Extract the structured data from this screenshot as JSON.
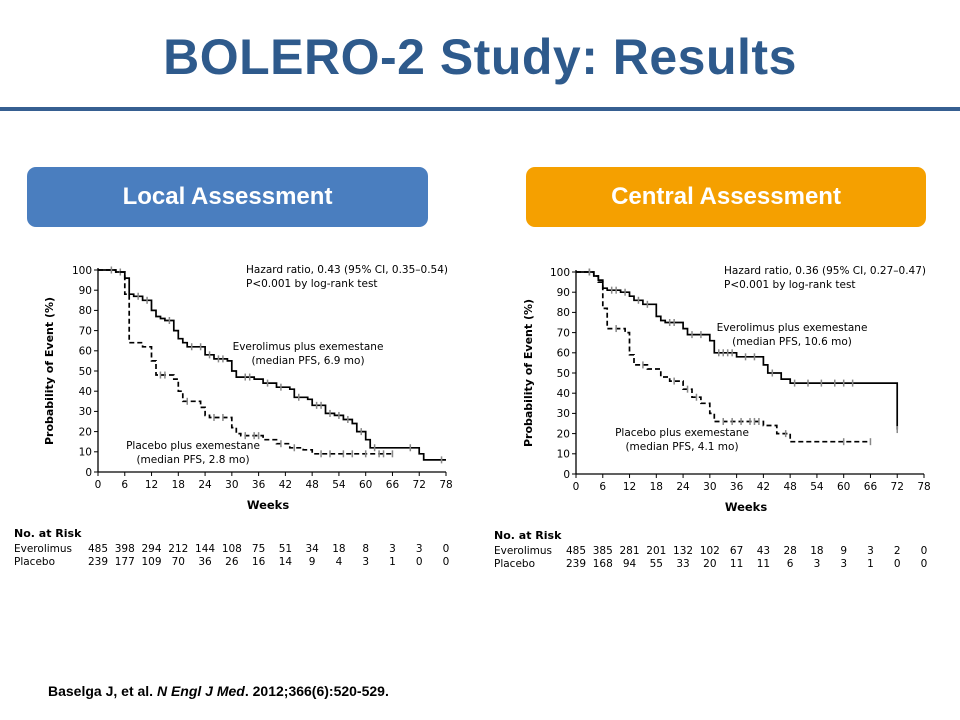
{
  "slide": {
    "title": "BOLERO-2 Study: Results",
    "citation": {
      "authors": "Baselga J, et al. ",
      "journal": "N Engl J Med",
      "details": ". 2012;366(6):520-529."
    },
    "colors": {
      "title": "#2e5a8c",
      "rule": "#365f91"
    }
  },
  "chart_data": [
    {
      "type": "line",
      "panel_label": "Local Assessment",
      "panel_color": "#4a7ebf",
      "xlabel": "Weeks",
      "ylabel": "Probability of Event (%)",
      "xlim": [
        0,
        78
      ],
      "ylim": [
        0,
        100
      ],
      "xticks": [
        0,
        6,
        12,
        18,
        24,
        30,
        36,
        42,
        48,
        54,
        60,
        66,
        72,
        78
      ],
      "yticks": [
        0,
        10,
        20,
        30,
        40,
        50,
        60,
        70,
        80,
        90,
        100
      ],
      "annotation": [
        "Hazard ratio, 0.43 (95% CI, 0.35–0.54)",
        "P<0.001 by log-rank test"
      ],
      "series": [
        {
          "name": "Everolimus plus exemestane",
          "label_lines": [
            "Everolimus plus exemestane",
            "(median PFS, 6.9 mo)"
          ],
          "style": "solid",
          "x": [
            0,
            4,
            6,
            7,
            8,
            10,
            12,
            13,
            14,
            15,
            17,
            18,
            19,
            20,
            24,
            26,
            29,
            30,
            31,
            35,
            37,
            40,
            43,
            44,
            47,
            48,
            51,
            53,
            55,
            57,
            58,
            60,
            61,
            72,
            73,
            78
          ],
          "y": [
            100,
            99,
            96,
            88,
            87,
            85,
            80,
            77,
            76,
            75,
            70,
            66,
            64,
            62,
            58,
            56,
            55,
            50,
            47,
            46,
            44,
            42,
            41,
            37,
            36,
            33,
            29,
            28,
            26,
            24,
            20,
            16,
            12,
            9,
            6,
            6
          ],
          "censor_x": [
            5,
            9,
            11,
            16,
            21,
            23,
            25,
            27,
            28,
            33,
            34,
            38,
            41,
            45,
            49,
            50,
            52,
            54,
            56,
            59,
            62,
            70,
            77
          ]
        },
        {
          "name": "Placebo plus exemestane",
          "label_lines": [
            "Placebo plus exemestane",
            "(median PFS, 2.8 mo)"
          ],
          "style": "dashed",
          "x": [
            0,
            4,
            6,
            7,
            10,
            12,
            13,
            17,
            18,
            19,
            23,
            24,
            25,
            30,
            31,
            32,
            37,
            40,
            43,
            46,
            48,
            60,
            66
          ],
          "y": [
            100,
            99,
            88,
            64,
            62,
            55,
            48,
            46,
            40,
            35,
            32,
            28,
            27,
            22,
            19,
            18,
            16,
            14,
            12,
            11,
            9,
            9,
            9
          ],
          "censor_x": [
            3,
            14,
            15,
            20,
            26,
            28,
            33,
            35,
            36,
            41,
            44,
            50,
            52,
            55,
            57,
            60,
            63,
            64,
            66
          ]
        }
      ],
      "risk_table": {
        "title": "No. at Risk",
        "rows": [
          {
            "label": "Everolimus",
            "values": [
              "485",
              "398",
              "294",
              "212",
              "144",
              "108",
              "75",
              "51",
              "34",
              "18",
              "8",
              "3",
              "3",
              "0"
            ]
          },
          {
            "label": "Placebo",
            "values": [
              "239",
              "177",
              "109",
              "70",
              "36",
              "26",
              "16",
              "14",
              "9",
              "4",
              "3",
              "1",
              "0",
              "0"
            ]
          }
        ]
      }
    },
    {
      "type": "line",
      "panel_label": "Central Assessment",
      "panel_color": "#f5a000",
      "xlabel": "Weeks",
      "ylabel": "Probability of Event (%)",
      "xlim": [
        0,
        78
      ],
      "ylim": [
        0,
        100
      ],
      "xticks": [
        0,
        6,
        12,
        18,
        24,
        30,
        36,
        42,
        48,
        54,
        60,
        66,
        72,
        78
      ],
      "yticks": [
        0,
        10,
        20,
        30,
        40,
        50,
        60,
        70,
        80,
        90,
        100
      ],
      "annotation": [
        "Hazard ratio, 0.36 (95% CI, 0.27–0.47)",
        "P<0.001 by log-rank test"
      ],
      "series": [
        {
          "name": "Everolimus plus exemestane",
          "label_lines": [
            "Everolimus plus exemestane",
            "(median PFS, 10.6 mo)"
          ],
          "style": "solid",
          "x": [
            0,
            4,
            5,
            6,
            7,
            10,
            12,
            13,
            15,
            18,
            19,
            20,
            24,
            25,
            30,
            31,
            36,
            42,
            43,
            46,
            48,
            72
          ],
          "y": [
            100,
            98,
            96,
            92,
            91,
            90,
            88,
            86,
            84,
            78,
            76,
            75,
            72,
            69,
            66,
            60,
            58,
            54,
            50,
            47,
            45,
            22
          ],
          "censor_x": [
            3,
            8,
            9,
            11,
            14,
            16,
            21,
            22,
            26,
            28,
            32,
            33,
            34,
            35,
            38,
            40,
            44,
            49,
            52,
            55,
            58,
            60,
            62,
            72
          ]
        },
        {
          "name": "Placebo plus exemestane",
          "label_lines": [
            "Placebo plus exemestane",
            "(median PFS, 4.1 mo)"
          ],
          "style": "dashed",
          "x": [
            0,
            4,
            5,
            6,
            7,
            11,
            12,
            13,
            16,
            19,
            21,
            24,
            26,
            28,
            30,
            31,
            42,
            45,
            48,
            66
          ],
          "y": [
            100,
            98,
            95,
            82,
            72,
            70,
            59,
            54,
            52,
            48,
            46,
            42,
            38,
            35,
            30,
            26,
            24,
            20,
            16,
            16
          ],
          "censor_x": [
            3,
            9,
            15,
            22,
            25,
            27,
            33,
            35,
            37,
            39,
            40,
            41,
            47,
            60,
            66
          ]
        }
      ],
      "risk_table": {
        "title": "No. at Risk",
        "rows": [
          {
            "label": "Everolimus",
            "values": [
              "485",
              "385",
              "281",
              "201",
              "132",
              "102",
              "67",
              "43",
              "28",
              "18",
              "9",
              "3",
              "2",
              "0"
            ]
          },
          {
            "label": "Placebo",
            "values": [
              "239",
              "168",
              "94",
              "55",
              "33",
              "20",
              "11",
              "11",
              "6",
              "3",
              "3",
              "1",
              "0",
              "0"
            ]
          }
        ]
      }
    }
  ]
}
